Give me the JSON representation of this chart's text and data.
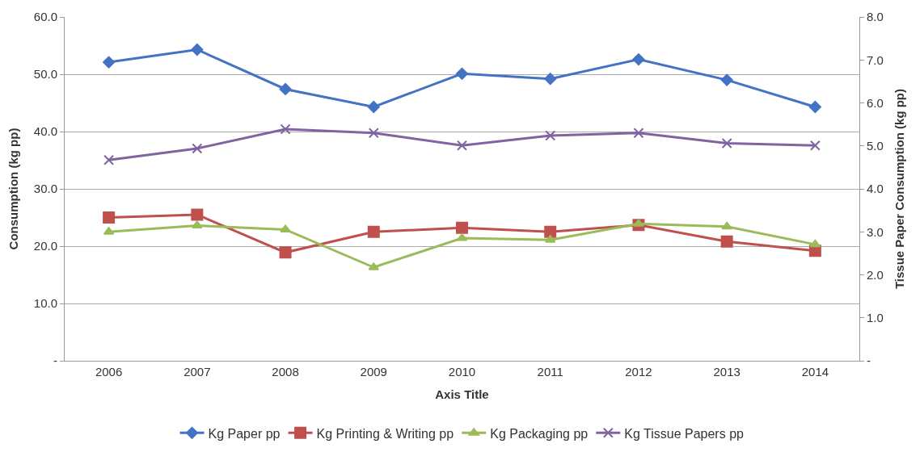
{
  "chart_data": {
    "type": "line",
    "xlabel": "Axis Title",
    "ylabel": "Consumption (kg pp)",
    "y2label": "Tissue Paper Consumption (kg pp)",
    "categories": [
      "2006",
      "2007",
      "2008",
      "2009",
      "2010",
      "2011",
      "2012",
      "2013",
      "2014"
    ],
    "series": [
      {
        "name": "Kg Paper pp",
        "color": "#4472c4",
        "marker": "diamond",
        "values": [
          52.1,
          54.3,
          47.4,
          44.3,
          50.1,
          49.2,
          52.6,
          49.0,
          44.3
        ]
      },
      {
        "name": "Kg Printing & Writing pp",
        "color": "#c0504d",
        "marker": "square",
        "values": [
          25.0,
          25.5,
          18.9,
          22.5,
          23.2,
          22.5,
          23.7,
          20.8,
          19.2
        ]
      },
      {
        "name": "Kg Packaging pp",
        "color": "#9bbb59",
        "marker": "triangle",
        "values": [
          22.5,
          23.6,
          22.9,
          16.3,
          21.4,
          21.1,
          23.9,
          23.4,
          20.3
        ]
      },
      {
        "name": "Kg Tissue Papers pp",
        "color": "#8064a2",
        "marker": "cross",
        "axis": "y2",
        "values": [
          4.67,
          4.94,
          5.39,
          5.3,
          5.01,
          5.24,
          5.3,
          5.06,
          5.01
        ]
      }
    ],
    "ylim": [
      0,
      60
    ],
    "yticks": [
      {
        "value": 0,
        "label": "-"
      },
      {
        "value": 10,
        "label": "10.0"
      },
      {
        "value": 20,
        "label": "20.0"
      },
      {
        "value": 30,
        "label": "30.0"
      },
      {
        "value": 40,
        "label": "40.0"
      },
      {
        "value": 50,
        "label": "50.0"
      },
      {
        "value": 60,
        "label": "60.0"
      }
    ],
    "y2lim": [
      0,
      8
    ],
    "y2ticks": [
      {
        "value": 0,
        "label": "-"
      },
      {
        "value": 1,
        "label": "1.0"
      },
      {
        "value": 2,
        "label": "2.0"
      },
      {
        "value": 3,
        "label": "3.0"
      },
      {
        "value": 4,
        "label": "4.0"
      },
      {
        "value": 5,
        "label": "5.0"
      },
      {
        "value": 6,
        "label": "6.0"
      },
      {
        "value": 7,
        "label": "7.0"
      },
      {
        "value": 8,
        "label": "8.0"
      }
    ],
    "grid": "y",
    "legend": "bottom"
  }
}
